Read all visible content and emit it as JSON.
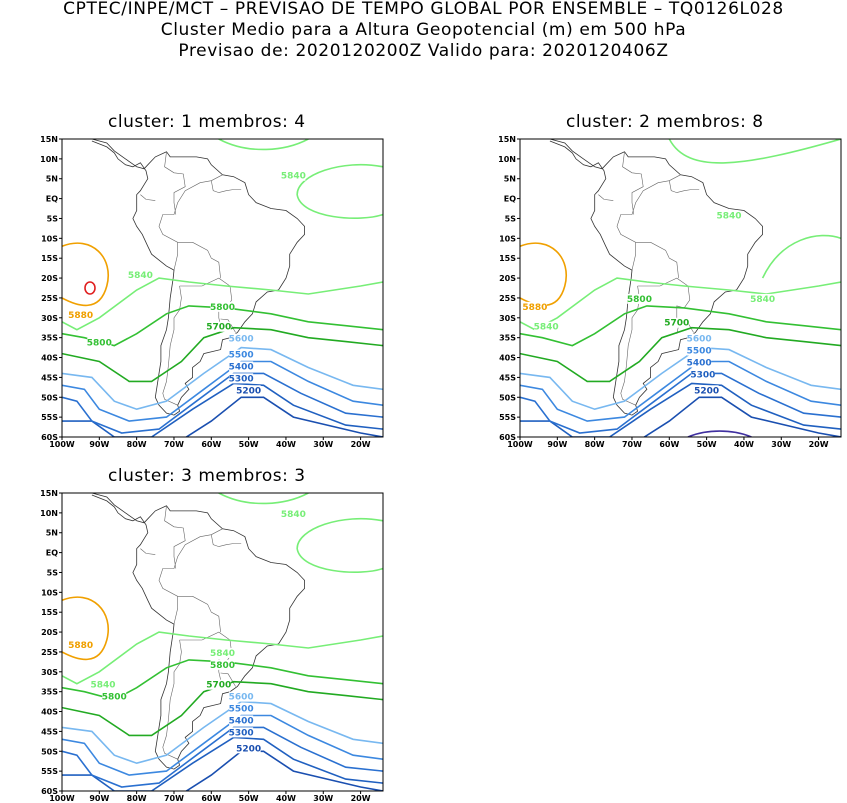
{
  "header": {
    "line1": "CPTEC/INPE/MCT – PREVISAO DE TEMPO GLOBAL POR ENSEMBLE – TQ0126L028",
    "line2": "Cluster Medio para a Altura Geopotencial (m) em 500 hPa",
    "line3": "Previsao de: 2020120200Z    Valido para: 2020120406Z"
  },
  "axes": {
    "lat_labels": [
      "15N",
      "10N",
      "5N",
      "EQ",
      "5S",
      "10S",
      "15S",
      "20S",
      "25S",
      "30S",
      "35S",
      "40S",
      "45S",
      "50S",
      "55S",
      "60S"
    ],
    "lon_labels": [
      "100W",
      "90W",
      "80W",
      "70W",
      "60W",
      "50W",
      "40W",
      "30W",
      "20W"
    ]
  },
  "colors": {
    "5200": "#1a4fb0",
    "5300": "#2060c0",
    "5400": "#2a70d0",
    "5500": "#3c88e0",
    "5600": "#78b8f0",
    "5700": "#22aa22",
    "5800": "#33c033",
    "5840": "#77ee77",
    "5880": "#f0a000",
    "5900": "#e02020",
    "5100": "#4030a0"
  },
  "panels": [
    {
      "title": "cluster: 1   membros: 4",
      "labels": [
        {
          "text": "5840",
          "lon": -38,
          "lat": 5
        },
        {
          "text": "5840",
          "lon": -79,
          "lat": -20
        },
        {
          "text": "5880",
          "lon": -95,
          "lat": -30
        },
        {
          "text": "5800",
          "lon": -57,
          "lat": -28
        },
        {
          "text": "5800",
          "lon": -90,
          "lat": -37
        },
        {
          "text": "5700",
          "lon": -58,
          "lat": -33
        },
        {
          "text": "5600",
          "lon": -52,
          "lat": -36
        },
        {
          "text": "5500",
          "lon": -52,
          "lat": -40
        },
        {
          "text": "5400",
          "lon": -52,
          "lat": -43
        },
        {
          "text": "5300",
          "lon": -52,
          "lat": -46
        },
        {
          "text": "5200",
          "lon": -50,
          "lat": -49
        }
      ]
    },
    {
      "title": "cluster: 2   membros: 8",
      "labels": [
        {
          "text": "5840",
          "lon": -44,
          "lat": -5
        },
        {
          "text": "5840",
          "lon": -35,
          "lat": -26
        },
        {
          "text": "5880",
          "lon": -96,
          "lat": -28
        },
        {
          "text": "5840",
          "lon": -93,
          "lat": -33
        },
        {
          "text": "5800",
          "lon": -68,
          "lat": -26
        },
        {
          "text": "5700",
          "lon": -58,
          "lat": -32
        },
        {
          "text": "5600",
          "lon": -52,
          "lat": -36
        },
        {
          "text": "5500",
          "lon": -52,
          "lat": -39
        },
        {
          "text": "5400",
          "lon": -52,
          "lat": -42
        },
        {
          "text": "5300",
          "lon": -51,
          "lat": -45
        },
        {
          "text": "5200",
          "lon": -50,
          "lat": -49
        }
      ]
    },
    {
      "title": "cluster: 3   membros: 3",
      "labels": [
        {
          "text": "5840",
          "lon": -38,
          "lat": 9
        },
        {
          "text": "5880",
          "lon": -95,
          "lat": -24
        },
        {
          "text": "5840",
          "lon": -57,
          "lat": -26
        },
        {
          "text": "5840",
          "lon": -89,
          "lat": -34
        },
        {
          "text": "5800",
          "lon": -57,
          "lat": -29
        },
        {
          "text": "5800",
          "lon": -86,
          "lat": -37
        },
        {
          "text": "5700",
          "lon": -58,
          "lat": -34
        },
        {
          "text": "5600",
          "lon": -52,
          "lat": -37
        },
        {
          "text": "5500",
          "lon": -52,
          "lat": -40
        },
        {
          "text": "5400",
          "lon": -52,
          "lat": -43
        },
        {
          "text": "5300",
          "lon": -52,
          "lat": -46
        },
        {
          "text": "5200",
          "lon": -50,
          "lat": -50
        }
      ]
    }
  ]
}
